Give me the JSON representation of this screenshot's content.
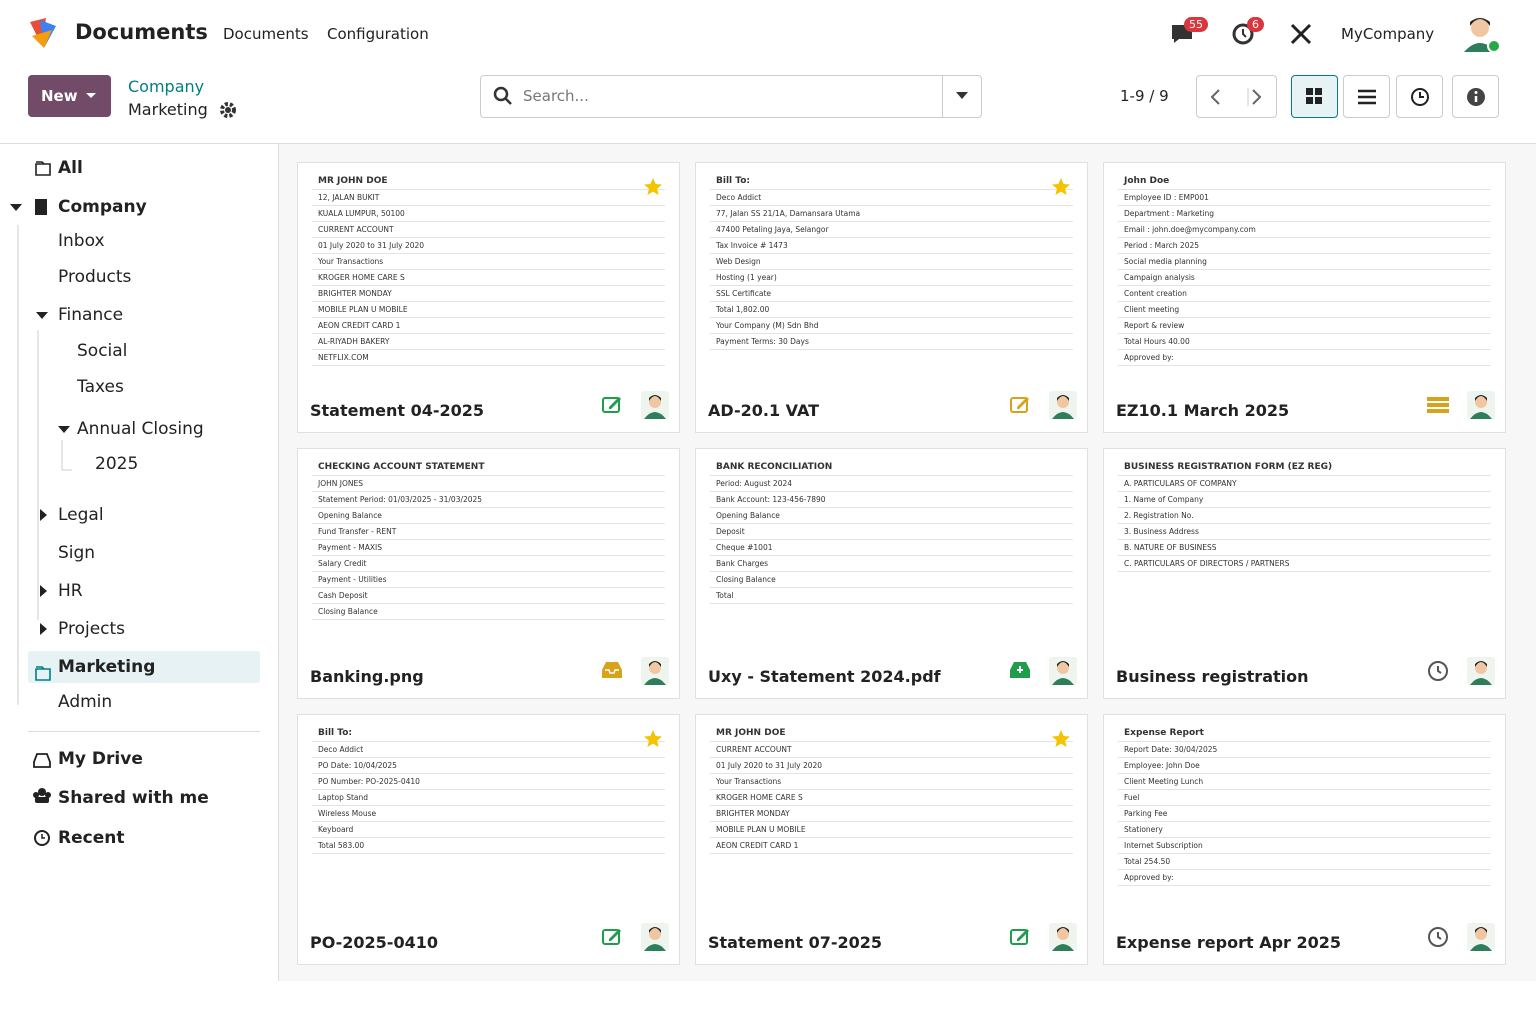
{
  "app": {
    "name": "Documents",
    "menu": [
      "Documents",
      "Configuration"
    ],
    "notifications": {
      "messages": "55",
      "activities": "6"
    },
    "company": "MyCompany"
  },
  "control": {
    "new": "New",
    "breadcrumb": [
      "Company",
      "Marketing"
    ],
    "search_placeholder": "Search...",
    "pager": "1-9 / 9"
  },
  "sidebar": {
    "items": [
      "All",
      "Company",
      "Inbox",
      "Products",
      "Finance",
      "Social",
      "Taxes",
      "Annual Closing",
      "2025",
      "Legal",
      "Sign",
      "HR",
      "Projects",
      "Marketing",
      "Admin"
    ],
    "shortcuts": [
      "My Drive",
      "Shared with me",
      "Recent"
    ]
  },
  "cards": [
    {
      "title": "Statement 04-2025",
      "preview": [
        "MR JOHN DOE",
        "12, JALAN BUKIT",
        "KUALA LUMPUR, 50100",
        "CURRENT ACCOUNT",
        "01 July 2020 to 31 July 2020",
        "Your Transactions",
        "KROGER HOME CARE S",
        "BRIGHTER MONDAY",
        "MOBILE PLAN U MOBILE",
        "AEON CREDIT CARD 1",
        "AL-RIYADH BAKERY",
        "NETFLIX.COM"
      ]
    },
    {
      "title": "AD-20.1 VAT",
      "preview": [
        "Bill To:",
        "Deco Addict",
        "77, Jalan SS 21/1A, Damansara Utama",
        "47400 Petaling Jaya, Selangor",
        "Tax Invoice # 1473",
        "Web Design",
        "Hosting (1 year)",
        "SSL Certificate",
        "Total 1,802.00",
        "Your Company (M) Sdn Bhd",
        "Payment Terms: 30 Days"
      ]
    },
    {
      "title": "EZ10.1 March 2025",
      "preview": [
        "John Doe",
        "Employee ID : EMP001",
        "Department : Marketing",
        "Email : john.doe@mycompany.com",
        "Period : March 2025",
        "Social media planning",
        "Campaign analysis",
        "Content creation",
        "Client meeting",
        "Report & review",
        "Total Hours 40.00",
        "Approved by:"
      ]
    },
    {
      "title": "Banking.png",
      "preview": [
        "CHECKING ACCOUNT STATEMENT",
        "JOHN JONES",
        "Statement Period: 01/03/2025 - 31/03/2025",
        "Opening Balance",
        "Fund Transfer - RENT",
        "Payment - MAXIS",
        "Salary Credit",
        "Payment - Utilities",
        "Cash Deposit",
        "Closing Balance"
      ]
    },
    {
      "title": "Uxy - Statement 2024.pdf",
      "preview": [
        "BANK RECONCILIATION",
        "Period: August 2024",
        "Bank Account: 123-456-7890",
        "Opening Balance",
        "Deposit",
        "Cheque #1001",
        "Bank Charges",
        "Closing Balance",
        "Total"
      ]
    },
    {
      "title": "Business registration",
      "preview": [
        "BUSINESS REGISTRATION FORM (EZ REG)",
        "A. PARTICULARS OF COMPANY",
        "1. Name of Company",
        "2. Registration No.",
        "3. Business Address",
        "B. NATURE OF BUSINESS",
        "C. PARTICULARS OF DIRECTORS / PARTNERS"
      ]
    },
    {
      "title": "PO-2025-0410",
      "preview": [
        "Bill To:",
        "Deco Addict",
        "PO Date: 10/04/2025",
        "PO Number: PO-2025-0410",
        "Laptop Stand",
        "Wireless Mouse",
        "Keyboard",
        "Total 583.00"
      ]
    },
    {
      "title": "Statement 07-2025",
      "preview": [
        "MR JOHN DOE",
        "CURRENT ACCOUNT",
        "01 July 2020 to 31 July 2020",
        "Your Transactions",
        "KROGER HOME CARE S",
        "BRIGHTER MONDAY",
        "MOBILE PLAN U MOBILE",
        "AEON CREDIT CARD 1"
      ]
    },
    {
      "title": "Expense report Apr 2025",
      "preview": [
        "Expense Report",
        "Report Date: 30/04/2025",
        "Employee: John Doe",
        "Client Meeting Lunch",
        "Fuel",
        "Parking Fee",
        "Stationery",
        "Internet Subscription",
        "Total 254.50",
        "Approved by:"
      ]
    }
  ]
}
